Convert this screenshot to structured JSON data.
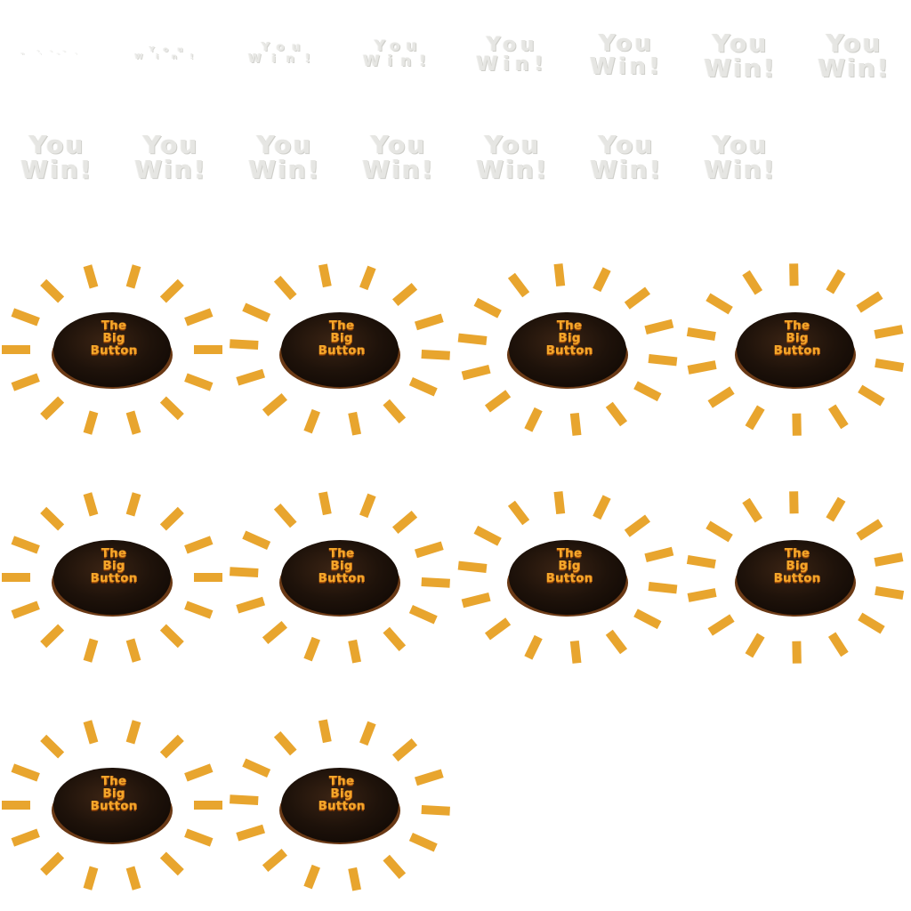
{
  "sprite_sheet": {
    "win_text": {
      "line1": "You",
      "line2": "Win!",
      "frame_count": 15
    },
    "big_button": {
      "line1": "The",
      "line2": "Big",
      "line3": "Button",
      "frame_count": 10,
      "colors": {
        "ray": "#e8a52e",
        "dome_dark": "#1e120a",
        "dome_mid": "#3b2414",
        "dome_rim": "#6b3a16",
        "text": "#f4a72a"
      }
    }
  }
}
